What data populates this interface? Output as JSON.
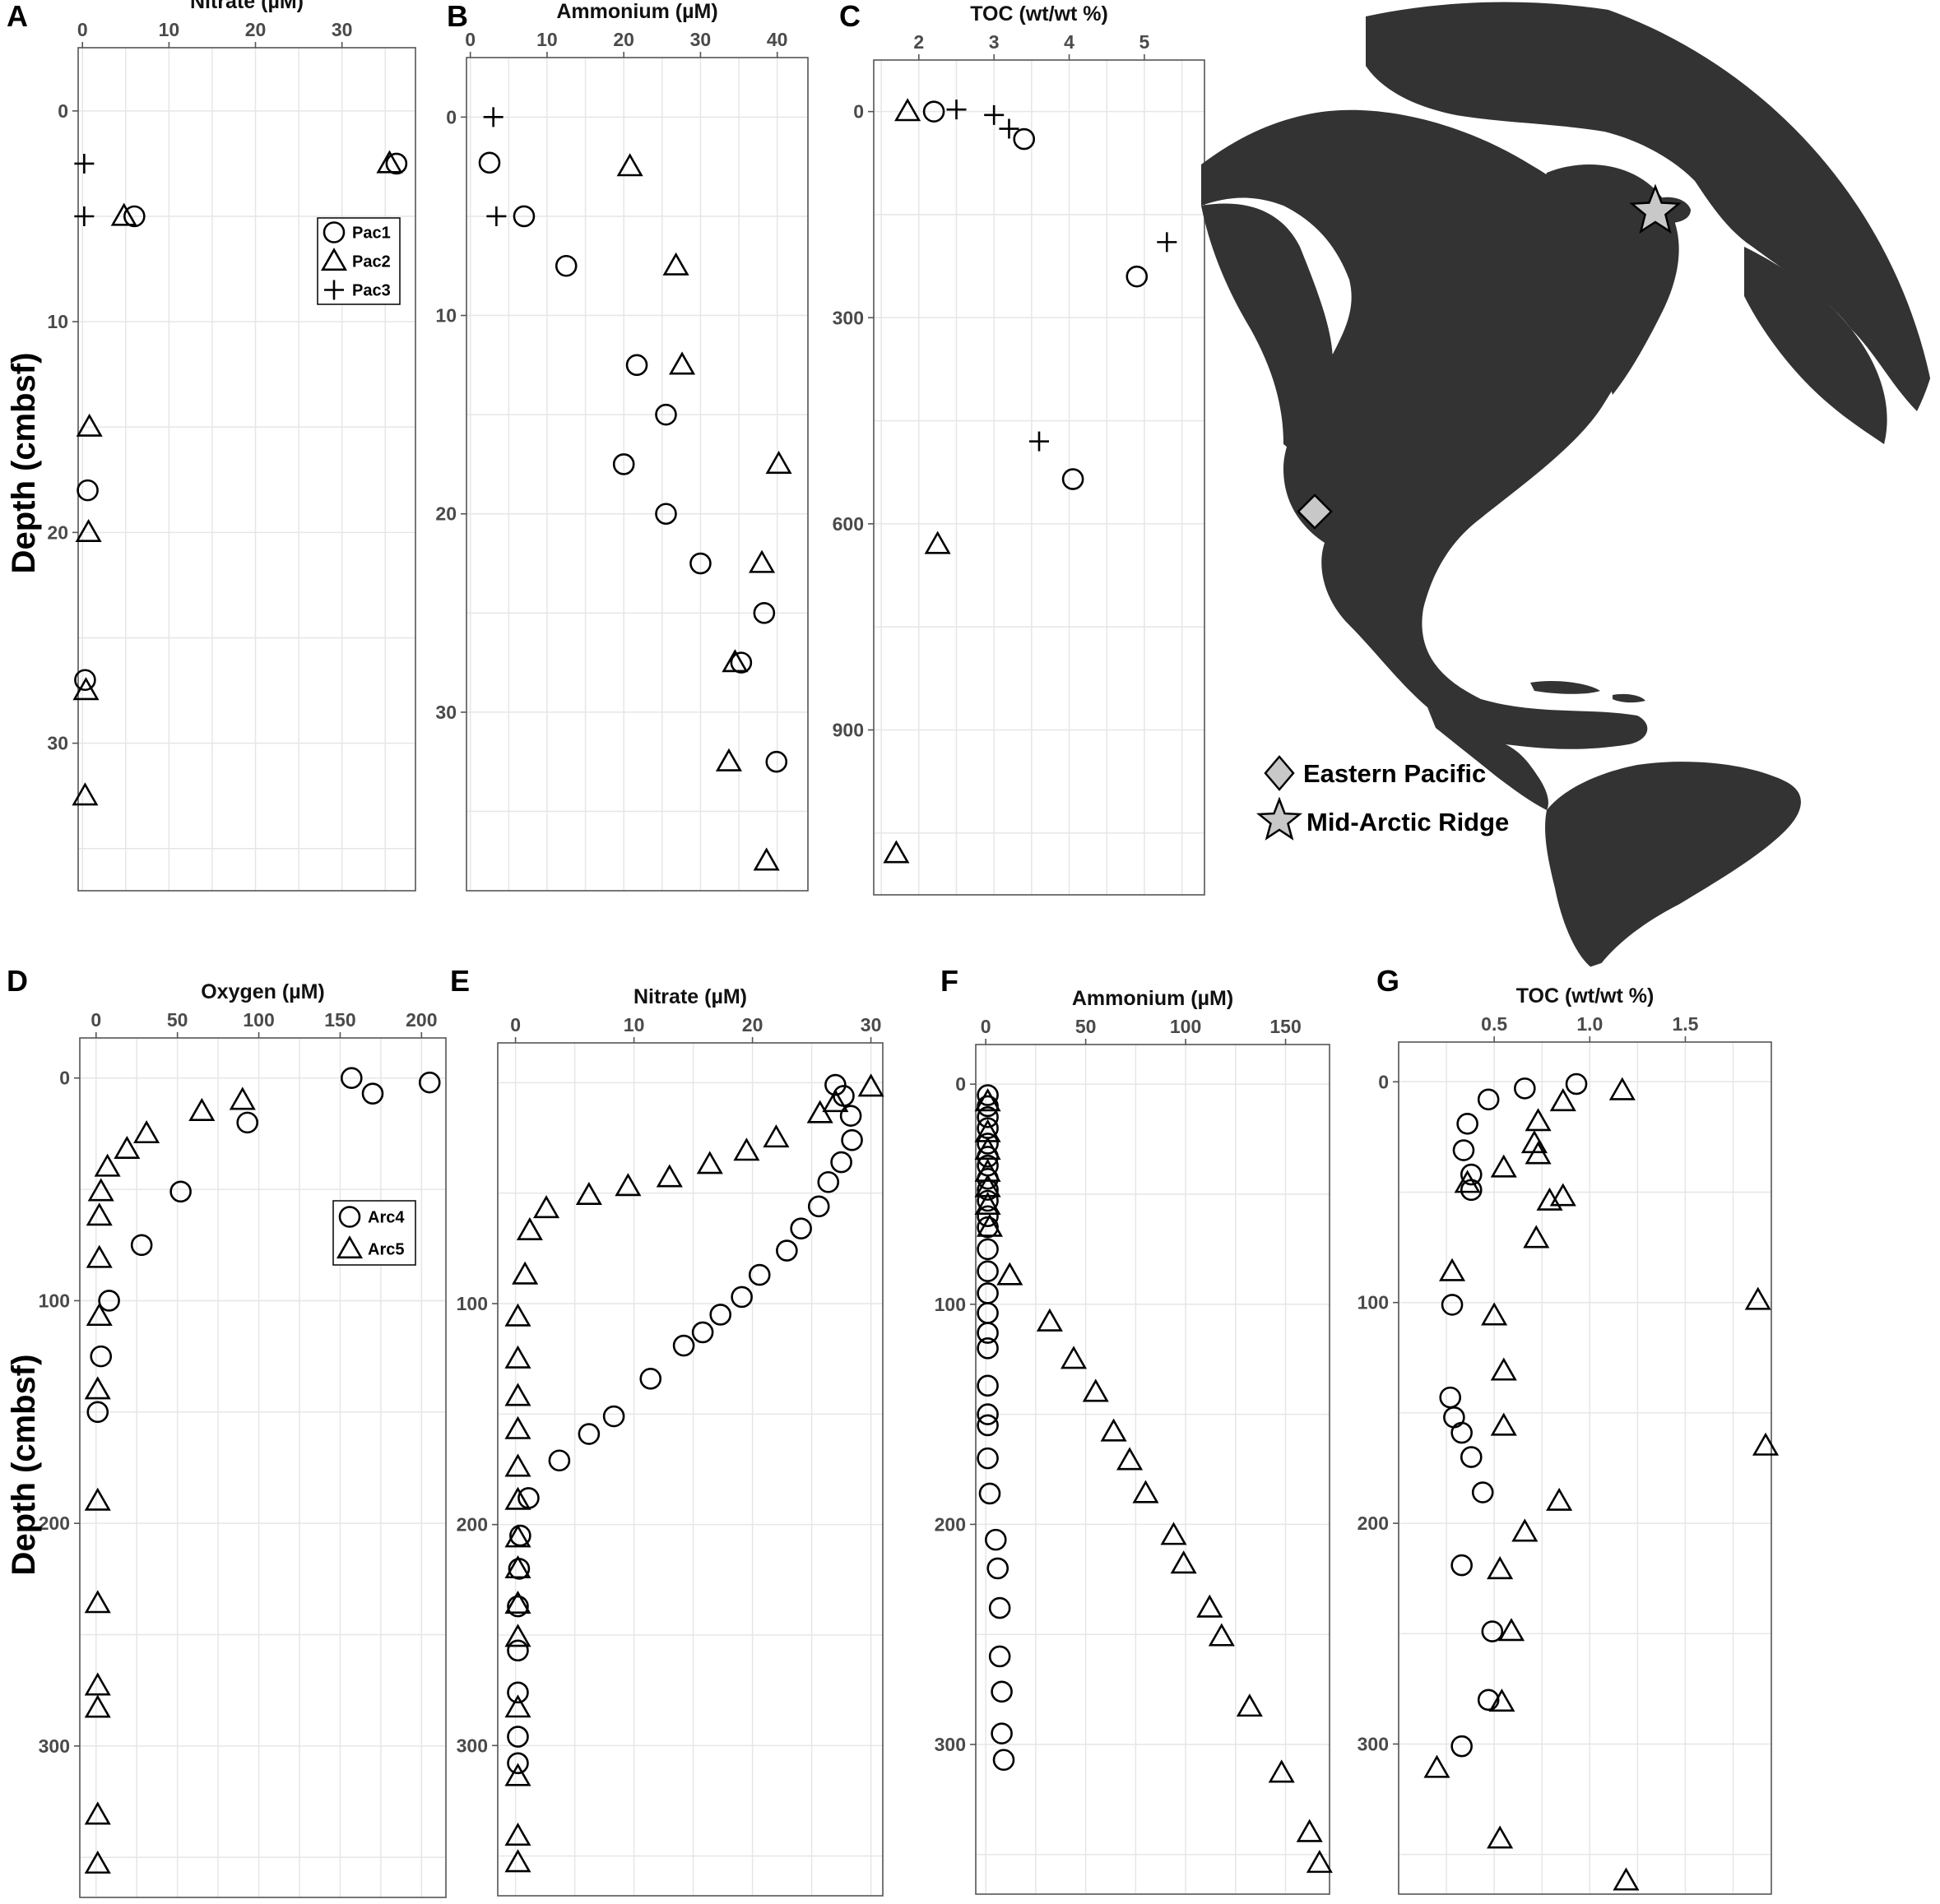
{
  "figure": {
    "y_label": "Depth (cmbsf)",
    "map_legend": [
      {
        "label": "Eastern Pacific",
        "marker": "diamond",
        "color": "#c8c8c8"
      },
      {
        "label": "Mid-Arctic Ridge",
        "marker": "star",
        "color": "#c8c8c8"
      }
    ],
    "colors": {
      "land": "#333333",
      "marker_fill": "#c8c8c8",
      "points": "#000000",
      "grid": "#e6e6e6"
    }
  },
  "chart_data": [
    {
      "panel": "A",
      "type": "scatter",
      "xlabel": "Nitrate (µM)",
      "ylabel": "Depth (cmbsf)",
      "xlim": [
        -0.5,
        38.5
      ],
      "ylim": [
        37,
        -3
      ],
      "xticks": [
        0,
        10,
        20,
        30
      ],
      "yticks": [
        0,
        10,
        20,
        30
      ],
      "y_reversed": true,
      "legend": {
        "position": "top-right",
        "entries": [
          "Pac1",
          "Pac2",
          "Pac3"
        ]
      },
      "series": [
        {
          "name": "Pac1",
          "marker": "circle",
          "points": [
            [
              36.3,
              2.5
            ],
            [
              6,
              5
            ],
            [
              0.6,
              18
            ],
            [
              0.3,
              27
            ]
          ]
        },
        {
          "name": "Pac2",
          "marker": "triangle",
          "points": [
            [
              35.5,
              2.5
            ],
            [
              4.8,
              5
            ],
            [
              0.8,
              15
            ],
            [
              0.7,
              20
            ],
            [
              0.4,
              27.5
            ],
            [
              0.3,
              32.5
            ]
          ]
        },
        {
          "name": "Pac3",
          "marker": "cross",
          "points": [
            [
              0.2,
              2.5
            ],
            [
              0.2,
              5
            ]
          ]
        }
      ]
    },
    {
      "panel": "B",
      "type": "scatter",
      "xlabel": "Ammonium (µM)",
      "ylabel": "",
      "xlim": [
        -0.5,
        44
      ],
      "ylim": [
        39,
        -3
      ],
      "xticks": [
        0,
        10,
        20,
        30,
        40
      ],
      "yticks": [
        0,
        10,
        20,
        30
      ],
      "y_reversed": true,
      "series": [
        {
          "name": "Pac1",
          "marker": "circle",
          "points": [
            [
              2.5,
              2.3
            ],
            [
              7,
              5
            ],
            [
              12.5,
              7.5
            ],
            [
              21.7,
              12.5
            ],
            [
              25.5,
              15
            ],
            [
              20,
              17.5
            ],
            [
              25.5,
              20
            ],
            [
              30,
              22.5
            ],
            [
              38.3,
              25
            ],
            [
              35.3,
              27.5
            ],
            [
              39.9,
              32.5
            ]
          ]
        },
        {
          "name": "Pac2",
          "marker": "triangle",
          "points": [
            [
              20.8,
              2.5
            ],
            [
              26.8,
              7.5
            ],
            [
              27.6,
              12.5
            ],
            [
              40.2,
              17.5
            ],
            [
              38,
              22.5
            ],
            [
              34.5,
              27.5
            ],
            [
              33.7,
              32.5
            ],
            [
              38.6,
              37.5
            ]
          ]
        },
        {
          "name": "Pac3",
          "marker": "cross",
          "points": [
            [
              3,
              0
            ],
            [
              3.4,
              5
            ]
          ]
        }
      ]
    },
    {
      "panel": "C",
      "type": "scatter",
      "xlabel": "TOC (wt/wt %)",
      "ylabel": "",
      "xlim": [
        1.4,
        5.8
      ],
      "ylim": [
        1140,
        -75
      ],
      "xticks": [
        2,
        3,
        4,
        5
      ],
      "yticks": [
        0,
        300,
        600,
        900
      ],
      "y_reversed": true,
      "series": [
        {
          "name": "Pac1",
          "marker": "circle",
          "points": [
            [
              2.2,
              0
            ],
            [
              3.4,
              40
            ],
            [
              4.9,
              240
            ],
            [
              4.05,
              535
            ]
          ]
        },
        {
          "name": "Pac2",
          "marker": "triangle",
          "points": [
            [
              1.85,
              0
            ],
            [
              2.25,
              630
            ],
            [
              1.7,
              1080
            ]
          ]
        },
        {
          "name": "Pac3",
          "marker": "cross",
          "points": [
            [
              2.5,
              -3
            ],
            [
              3,
              5
            ],
            [
              3.2,
              25
            ],
            [
              5.3,
              190
            ],
            [
              3.6,
              480
            ]
          ]
        }
      ]
    },
    {
      "panel": "D",
      "type": "scatter",
      "xlabel": "Oxygen (µM)",
      "ylabel": "Depth (cmbsf)",
      "xlim": [
        -10,
        215
      ],
      "ylim": [
        368,
        -18
      ],
      "xticks": [
        0,
        50,
        100,
        150,
        200
      ],
      "yticks": [
        0,
        100,
        200,
        300
      ],
      "y_reversed": true,
      "legend": {
        "position": "top-right",
        "entries": [
          "Arc4",
          "Arc5"
        ]
      },
      "series": [
        {
          "name": "Arc4",
          "marker": "circle",
          "points": [
            [
              157,
              0
            ],
            [
              205,
              2
            ],
            [
              170,
              7
            ],
            [
              93,
              20
            ],
            [
              52,
              51
            ],
            [
              28,
              75
            ],
            [
              8,
              100
            ],
            [
              3,
              125
            ],
            [
              1,
              150
            ]
          ]
        },
        {
          "name": "Arc5",
          "marker": "triangle",
          "points": [
            [
              90,
              10
            ],
            [
              65,
              15
            ],
            [
              31,
              25
            ],
            [
              19,
              32
            ],
            [
              7,
              40
            ],
            [
              3,
              51
            ],
            [
              2,
              62
            ],
            [
              2,
              81
            ],
            [
              2,
              107
            ],
            [
              1,
              140
            ],
            [
              1,
              190
            ],
            [
              1,
              236
            ],
            [
              1,
              273
            ],
            [
              1,
              283
            ],
            [
              1,
              331
            ],
            [
              1,
              353
            ]
          ]
        }
      ]
    },
    {
      "panel": "E",
      "type": "scatter",
      "xlabel": "Nitrate (µM)",
      "ylabel": "",
      "xlim": [
        -1.5,
        31
      ],
      "ylim": [
        368,
        -18
      ],
      "xticks": [
        0,
        10,
        20,
        30
      ],
      "yticks": [
        100,
        200,
        300
      ],
      "y_reversed": true,
      "series": [
        {
          "name": "Arc4",
          "marker": "circle",
          "points": [
            [
              27,
              1
            ],
            [
              27.7,
              6
            ],
            [
              28.3,
              15
            ],
            [
              28.4,
              26
            ],
            [
              27.5,
              36
            ],
            [
              26.4,
              45
            ],
            [
              25.6,
              56
            ],
            [
              24.1,
              66
            ],
            [
              22.9,
              76
            ],
            [
              20.6,
              87
            ],
            [
              19.1,
              97
            ],
            [
              17.3,
              105
            ],
            [
              15.8,
              113
            ],
            [
              14.2,
              119
            ],
            [
              11.4,
              134
            ],
            [
              8.3,
              151
            ],
            [
              6.2,
              159
            ],
            [
              3.7,
              171
            ],
            [
              1.1,
              188
            ],
            [
              0.4,
              205
            ],
            [
              0.3,
              220
            ],
            [
              0.2,
              237
            ],
            [
              0.2,
              257
            ],
            [
              0.2,
              276
            ],
            [
              0.2,
              296
            ],
            [
              0.2,
              308
            ]
          ]
        },
        {
          "name": "Arc5",
          "marker": "triangle",
          "points": [
            [
              30,
              2
            ],
            [
              27,
              9
            ],
            [
              25.7,
              14
            ],
            [
              22,
              25
            ],
            [
              19.5,
              31
            ],
            [
              16.4,
              37
            ],
            [
              13,
              43
            ],
            [
              9.5,
              47
            ],
            [
              6.2,
              51
            ],
            [
              2.6,
              57
            ],
            [
              1.2,
              67
            ],
            [
              0.8,
              87
            ],
            [
              0.2,
              106
            ],
            [
              0.2,
              125
            ],
            [
              0.2,
              142
            ],
            [
              0.2,
              157
            ],
            [
              0.2,
              174
            ],
            [
              0.2,
              189
            ],
            [
              0.2,
              206
            ],
            [
              0.2,
              220
            ],
            [
              0.2,
              236
            ],
            [
              0.2,
              251
            ],
            [
              0.2,
              283
            ],
            [
              0.2,
              314
            ],
            [
              0.2,
              341
            ],
            [
              0.2,
              353
            ]
          ]
        }
      ]
    },
    {
      "panel": "F",
      "type": "scatter",
      "xlabel": "Ammonium (µM)",
      "ylabel": "",
      "xlim": [
        -5,
        172
      ],
      "ylim": [
        368,
        -18
      ],
      "xticks": [
        0,
        50,
        100,
        150
      ],
      "yticks": [
        0,
        100,
        200,
        300
      ],
      "y_reversed": true,
      "series": [
        {
          "name": "Arc4",
          "marker": "circle",
          "points": [
            [
              1,
              5
            ],
            [
              1,
              10
            ],
            [
              1,
              15
            ],
            [
              1,
              20
            ],
            [
              1,
              27
            ],
            [
              1,
              33
            ],
            [
              1,
              37
            ],
            [
              1,
              43
            ],
            [
              1,
              48
            ],
            [
              1,
              53
            ],
            [
              1,
              60
            ],
            [
              1,
              65
            ],
            [
              1,
              75
            ],
            [
              1,
              85
            ],
            [
              1,
              95
            ],
            [
              1,
              104
            ],
            [
              1,
              113
            ],
            [
              1,
              120
            ],
            [
              1,
              137
            ],
            [
              1,
              150
            ],
            [
              1,
              155
            ],
            [
              1,
              170
            ],
            [
              2,
              186
            ],
            [
              5,
              207
            ],
            [
              6,
              220
            ],
            [
              7,
              238
            ],
            [
              7,
              260
            ],
            [
              8,
              276
            ],
            [
              8,
              295
            ],
            [
              9,
              307
            ]
          ]
        },
        {
          "name": "Arc5",
          "marker": "triangle",
          "points": [
            [
              1,
              8
            ],
            [
              1,
              22
            ],
            [
              1,
              30
            ],
            [
              1,
              40
            ],
            [
              1,
              47
            ],
            [
              1,
              55
            ],
            [
              2,
              65
            ],
            [
              12,
              87
            ],
            [
              32,
              108
            ],
            [
              44,
              125
            ],
            [
              55,
              140
            ],
            [
              64,
              158
            ],
            [
              72,
              171
            ],
            [
              80,
              186
            ],
            [
              94,
              205
            ],
            [
              99,
              218
            ],
            [
              112,
              238
            ],
            [
              118,
              251
            ],
            [
              132,
              283
            ],
            [
              148,
              313
            ],
            [
              162,
              340
            ],
            [
              167,
              354
            ]
          ]
        }
      ]
    },
    {
      "panel": "G",
      "type": "scatter",
      "xlabel": "TOC (wt/wt %)",
      "ylabel": "",
      "xlim": [
        0,
        1.95
      ],
      "ylim": [
        368,
        -18
      ],
      "xticks": [
        0.5,
        1.0,
        1.5
      ],
      "yticks": [
        0,
        100,
        200,
        300
      ],
      "y_reversed": true,
      "series": [
        {
          "name": "Arc4",
          "marker": "circle",
          "points": [
            [
              0.93,
              1
            ],
            [
              0.66,
              3
            ],
            [
              0.47,
              8
            ],
            [
              0.36,
              19
            ],
            [
              0.34,
              31
            ],
            [
              0.38,
              42
            ],
            [
              0.38,
              49
            ],
            [
              0.28,
              101
            ],
            [
              0.27,
              143
            ],
            [
              0.29,
              152
            ],
            [
              0.33,
              159
            ],
            [
              0.38,
              170
            ],
            [
              0.44,
              186
            ],
            [
              0.33,
              219
            ],
            [
              0.49,
              249
            ],
            [
              0.47,
              280
            ],
            [
              0.33,
              301
            ]
          ]
        },
        {
          "name": "Arc5",
          "marker": "triangle",
          "points": [
            [
              1.17,
              4
            ],
            [
              0.86,
              9
            ],
            [
              0.73,
              18
            ],
            [
              0.71,
              28
            ],
            [
              0.73,
              33
            ],
            [
              0.55,
              39
            ],
            [
              0.36,
              46
            ],
            [
              0.86,
              52
            ],
            [
              0.79,
              54
            ],
            [
              0.72,
              71
            ],
            [
              0.28,
              86
            ],
            [
              0.5,
              106
            ],
            [
              0.55,
              131
            ],
            [
              0.55,
              156
            ],
            [
              0.84,
              190
            ],
            [
              0.66,
              204
            ],
            [
              0.53,
              221
            ],
            [
              0.59,
              249
            ],
            [
              0.54,
              281
            ],
            [
              0.2,
              311
            ],
            [
              0.53,
              343
            ],
            [
              1.19,
              362
            ],
            [
              1.88,
              99
            ],
            [
              1.92,
              165
            ]
          ]
        }
      ]
    }
  ]
}
